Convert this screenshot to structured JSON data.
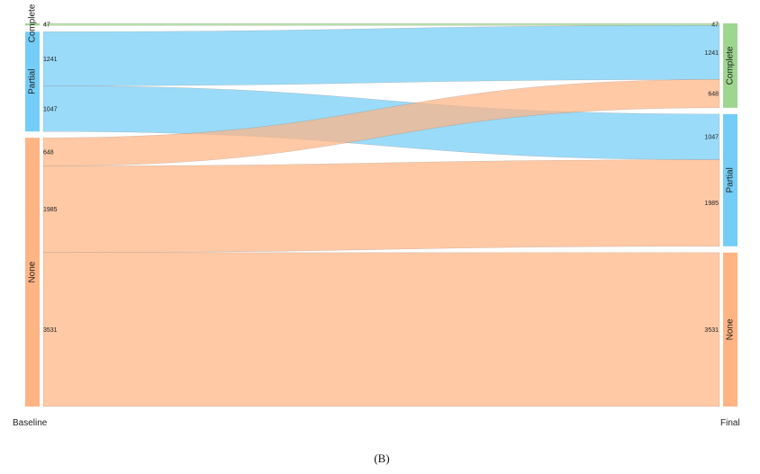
{
  "chart_data": {
    "type": "sankey",
    "stages": [
      "Baseline",
      "Final"
    ],
    "categories": [
      "Complete",
      "Partial",
      "None"
    ],
    "colors": {
      "Complete": "#9dd68f",
      "Partial": "#73cdf7",
      "None": "#ffb484"
    },
    "flows": [
      {
        "from": "Complete",
        "to": "Complete",
        "value": 47
      },
      {
        "from": "Partial",
        "to": "Complete",
        "value": 1241
      },
      {
        "from": "Partial",
        "to": "Partial",
        "value": 1047
      },
      {
        "from": "None",
        "to": "Complete",
        "value": 648
      },
      {
        "from": "None",
        "to": "Partial",
        "value": 1985
      },
      {
        "from": "None",
        "to": "None",
        "value": 3531
      }
    ],
    "source_order": [
      [
        "Complete",
        "Complete"
      ],
      [
        "Partial",
        "Complete"
      ],
      [
        "Partial",
        "Partial"
      ],
      [
        "None",
        "Complete"
      ],
      [
        "None",
        "Partial"
      ],
      [
        "None",
        "None"
      ]
    ],
    "target_order": [
      [
        "Complete",
        "Complete"
      ],
      [
        "Partial",
        "Complete"
      ],
      [
        "None",
        "Complete"
      ],
      [
        "Partial",
        "Partial"
      ],
      [
        "None",
        "Partial"
      ],
      [
        "None",
        "None"
      ]
    ]
  },
  "caption": "(B)"
}
